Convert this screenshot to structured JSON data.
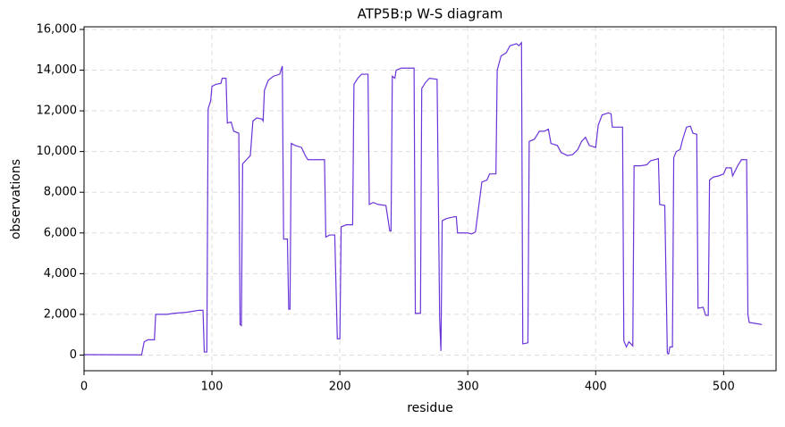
{
  "chart_data": {
    "type": "line",
    "title": "ATP5B:p W-S diagram",
    "x_label": "residue",
    "y_label": "observations",
    "color": "#6a35d9",
    "grid": true,
    "xlim": [
      0,
      541
    ],
    "ylim": [
      -770,
      16130
    ],
    "xticks": [
      0,
      100,
      200,
      300,
      400,
      500
    ],
    "yticks": [
      0,
      {
        "value": 2000,
        "label": "2,000"
      },
      {
        "value": 4000,
        "label": "4,000"
      },
      {
        "value": 6000,
        "label": "6,000"
      },
      {
        "value": 8000,
        "label": "8,000"
      },
      {
        "value": 10000,
        "label": "10,000"
      },
      {
        "value": 12000,
        "label": "12,000"
      },
      {
        "value": 14000,
        "label": "14,000"
      },
      {
        "value": 16000,
        "label": "16,000"
      }
    ],
    "x": [
      0,
      45,
      47,
      50,
      55,
      56,
      65,
      70,
      80,
      90,
      93,
      94,
      96,
      97,
      99,
      100,
      103,
      107,
      108,
      111,
      112,
      115,
      117,
      121,
      122,
      123,
      124,
      127,
      130,
      132,
      135,
      139,
      140,
      141,
      144,
      148,
      153,
      155,
      156,
      159,
      160,
      161,
      162,
      165,
      170,
      173,
      175,
      180,
      188,
      189,
      192,
      196,
      198,
      200,
      201,
      205,
      210,
      211,
      214,
      217,
      222,
      223,
      226,
      230,
      236,
      239,
      240,
      241,
      243,
      244,
      248,
      258,
      259,
      263,
      264,
      267,
      270,
      276,
      278,
      279,
      280,
      283,
      286,
      290,
      291,
      292,
      300,
      303,
      306,
      311,
      315,
      317,
      322,
      323,
      326,
      330,
      333,
      338,
      340,
      342,
      343,
      347,
      348,
      352,
      356,
      360,
      363,
      365,
      370,
      373,
      378,
      382,
      386,
      389,
      392,
      395,
      400,
      402,
      405,
      410,
      412,
      413,
      421,
      422,
      424,
      426,
      429,
      430,
      435,
      440,
      443,
      449,
      450,
      454,
      456,
      457,
      458,
      460,
      461,
      463,
      466,
      468,
      471,
      474,
      476,
      479,
      480,
      484,
      486,
      488,
      489,
      492,
      496,
      500,
      502,
      506,
      507,
      511,
      514,
      518,
      519,
      520,
      525,
      530
    ],
    "values": [
      20,
      10,
      650,
      750,
      750,
      2000,
      2000,
      2050,
      2100,
      2200,
      2200,
      150,
      150,
      12100,
      12500,
      13200,
      13300,
      13350,
      13600,
      13600,
      11400,
      11450,
      11000,
      10900,
      1500,
      1450,
      9400,
      9600,
      9800,
      11500,
      11650,
      11600,
      11500,
      13000,
      13500,
      13700,
      13800,
      14200,
      5700,
      5700,
      2250,
      2250,
      10400,
      10300,
      10200,
      9800,
      9600,
      9600,
      9600,
      5800,
      5900,
      5900,
      800,
      800,
      6300,
      6400,
      6400,
      13300,
      13600,
      13800,
      13800,
      7400,
      7500,
      7400,
      7350,
      6100,
      6100,
      13700,
      13600,
      14000,
      14100,
      14100,
      2050,
      2050,
      13100,
      13400,
      13600,
      13550,
      1800,
      200,
      6600,
      6700,
      6750,
      6800,
      6800,
      6000,
      6000,
      5950,
      6050,
      8500,
      8600,
      8900,
      8900,
      14000,
      14700,
      14850,
      15200,
      15300,
      15200,
      15350,
      550,
      600,
      10500,
      10600,
      11000,
      11000,
      11100,
      10400,
      10300,
      9950,
      9800,
      9850,
      10100,
      10500,
      10700,
      10300,
      10200,
      11300,
      11800,
      11900,
      11850,
      11200,
      11200,
      700,
      400,
      650,
      450,
      9300,
      9300,
      9350,
      9550,
      9650,
      7400,
      7350,
      100,
      50,
      400,
      400,
      9700,
      10000,
      10100,
      10600,
      11200,
      11250,
      10900,
      10850,
      2300,
      2350,
      1950,
      1950,
      8600,
      8750,
      8800,
      8900,
      9200,
      9200,
      8800,
      9300,
      9600,
      9600,
      2000,
      1600,
      1550,
      1500
    ]
  }
}
